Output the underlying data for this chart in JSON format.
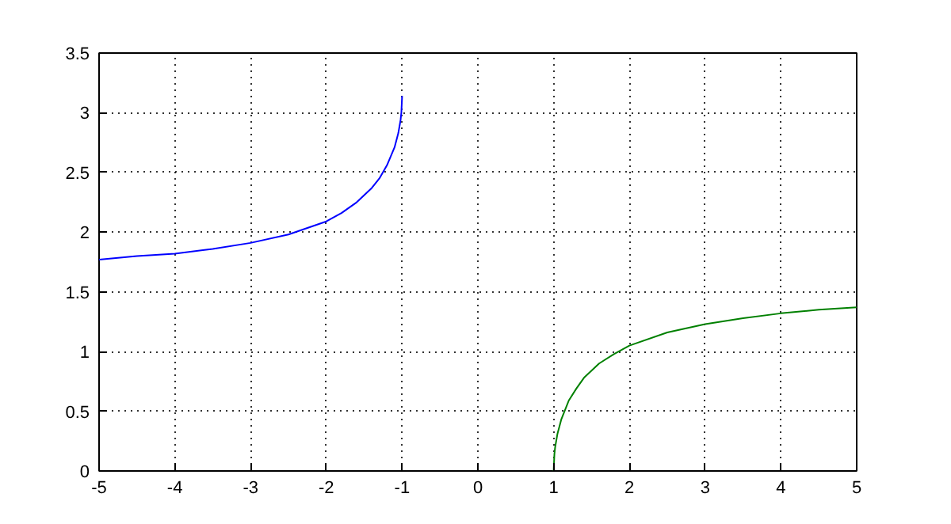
{
  "chart_data": {
    "type": "line",
    "xlim": [
      -5,
      5
    ],
    "ylim": [
      0,
      3.5
    ],
    "xticks": [
      -5,
      -4,
      -3,
      -2,
      -1,
      0,
      1,
      2,
      3,
      4,
      5
    ],
    "yticks": [
      0,
      0.5,
      1,
      1.5,
      2,
      2.5,
      3,
      3.5
    ],
    "grid": true,
    "marker": "none",
    "line_style": "solid",
    "series": [
      {
        "color": "#0000ff",
        "x": [
          -5,
          -4.5,
          -4,
          -3.5,
          -3,
          -2.5,
          -2,
          -1.8,
          -1.6,
          -1.4,
          -1.3,
          -1.2,
          -1.1,
          -1.05,
          -1.02,
          -1.01,
          -1
        ],
        "values": [
          1.77,
          1.8,
          1.82,
          1.86,
          1.91,
          1.98,
          2.09,
          2.16,
          2.25,
          2.37,
          2.45,
          2.56,
          2.71,
          2.83,
          2.94,
          3.0,
          3.14
        ]
      },
      {
        "color": "#008000",
        "x": [
          1,
          1.01,
          1.02,
          1.05,
          1.1,
          1.2,
          1.3,
          1.4,
          1.6,
          1.8,
          2,
          2.5,
          3,
          3.5,
          4,
          4.5,
          5
        ],
        "values": [
          0,
          0.14,
          0.2,
          0.31,
          0.43,
          0.59,
          0.69,
          0.78,
          0.9,
          0.98,
          1.05,
          1.16,
          1.23,
          1.28,
          1.32,
          1.35,
          1.37
        ]
      }
    ]
  }
}
